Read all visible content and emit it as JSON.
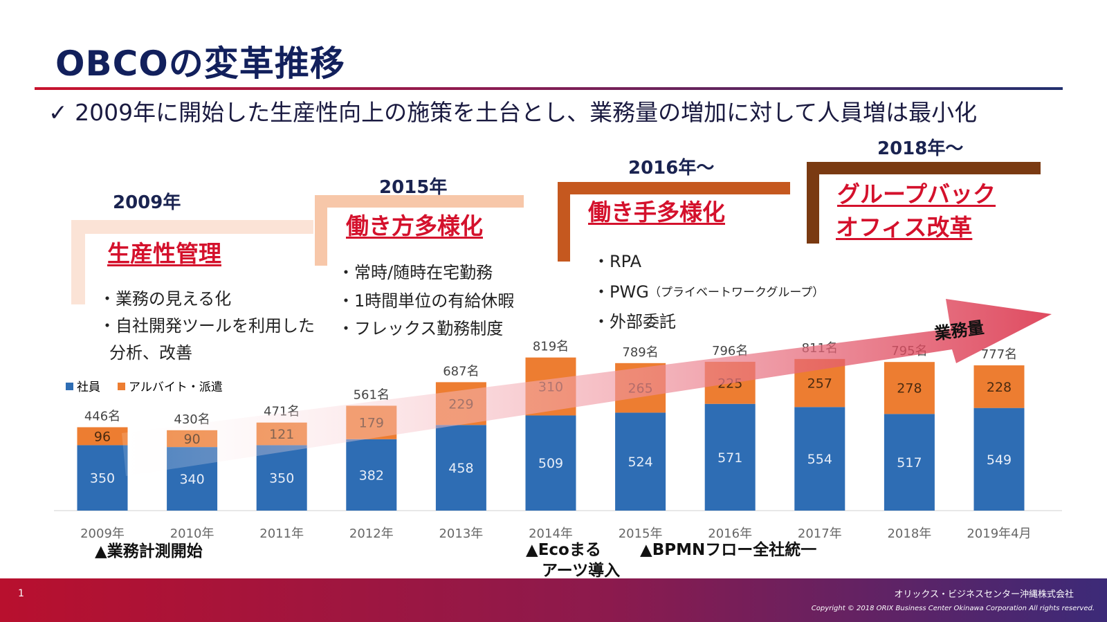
{
  "slide": {
    "title": "OBCOの変革推移",
    "subtitle": "✓ 2009年に開始した生産性向上の施策を土台とし、業務量の増加に対して人員増は最小化",
    "page_number": "1",
    "company": "オリックス・ビジネスセンター沖縄株式会社",
    "copyright": "Copyright © 2018 ORIX Business Center Okinawa Corporation All rights reserved."
  },
  "phases": [
    {
      "year": "2009年",
      "heading": "生産性管理",
      "bullets": [
        "・業務の見える化",
        "・自社開発ツールを利用した",
        "分析、改善"
      ],
      "color": "#fbe1d2"
    },
    {
      "year": "2015年",
      "heading": "働き方多様化",
      "bullets": [
        "・常時/随時在宅勤務",
        "・1時間単位の有給休暇",
        "・フレックス勤務制度"
      ],
      "color": "#f6c4a4"
    },
    {
      "year": "2016年～",
      "heading": "働き手多様化",
      "bullets": [
        "・RPA",
        "・PWG",
        "・外部委託"
      ],
      "note": "（プライベートワークグループ）",
      "color": "#c5581f"
    },
    {
      "year": "2018年～",
      "heading_lines": [
        "グループバック",
        "オフィス改革"
      ],
      "color": "#7a3a12"
    }
  ],
  "arrow_label": "業務量",
  "events": [
    {
      "label": "▲業務計測開始"
    },
    {
      "label_lines": [
        "▲Ecoまる",
        "アーツ導入"
      ]
    },
    {
      "label": "▲BPMNフロー全社統一"
    }
  ],
  "chart_data": {
    "type": "bar",
    "stacked": true,
    "categories": [
      "2009年",
      "2010年",
      "2011年",
      "2012年",
      "2013年",
      "2014年",
      "2015年",
      "2016年",
      "2017年",
      "2018年",
      "2019年4月"
    ],
    "series": [
      {
        "name": "社員",
        "values": [
          350,
          340,
          350,
          382,
          458,
          509,
          524,
          571,
          554,
          517,
          549
        ],
        "color": "#2e6db4"
      },
      {
        "name": "アルバイト・派遣",
        "values": [
          96,
          90,
          121,
          179,
          229,
          310,
          265,
          225,
          257,
          278,
          228
        ],
        "color": "#ed7d31"
      }
    ],
    "totals": [
      "446名",
      "430名",
      "471名",
      "561名",
      "687名",
      "819名",
      "789名",
      "796名",
      "811名",
      "795名",
      "777名"
    ],
    "legend_position": "top-left",
    "grid": false
  }
}
